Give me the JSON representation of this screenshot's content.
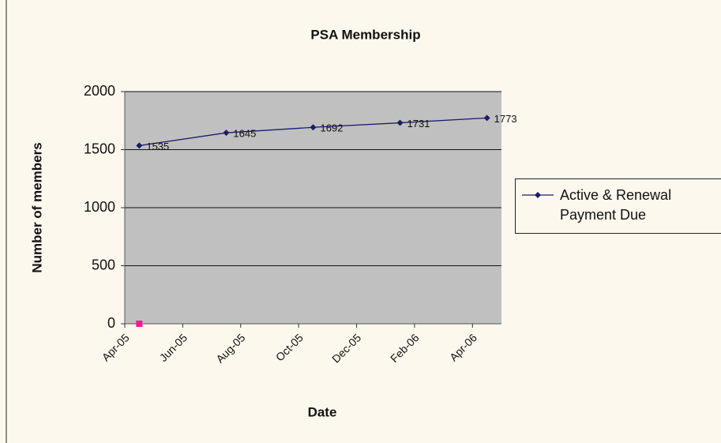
{
  "chart_data": {
    "type": "line",
    "title": "PSA Membership",
    "x_label": "Date",
    "y_label": "Number of members",
    "x": [
      "2005-04",
      "2005-07",
      "2005-10",
      "2006-01",
      "2006-04"
    ],
    "series": [
      {
        "name": "Active & Renewal Payment Due",
        "color": "#1c1c6b",
        "values": [
          1535,
          1645,
          1692,
          1731,
          1773
        ]
      },
      {
        "color": "#ff1493",
        "values": [
          0,
          null,
          null,
          null,
          null
        ]
      }
    ],
    "xlim": [
      "2005-04",
      "2006-05"
    ],
    "xticks": [
      {
        "value": "2005-04",
        "label": "Apr-05"
      },
      {
        "value": "2005-06",
        "label": "Jun-05"
      },
      {
        "value": "2005-08",
        "label": "Aug-05"
      },
      {
        "value": "2005-10",
        "label": "Oct-05"
      },
      {
        "value": "2005-12",
        "label": "Dec-05"
      },
      {
        "value": "2006-02",
        "label": "Feb-06"
      },
      {
        "value": "2006-04",
        "label": "Apr-06"
      }
    ],
    "ylim": [
      0,
      2000
    ],
    "yticks": [
      0,
      500,
      1000,
      1500,
      2000
    ],
    "grid": true,
    "legend": "right"
  }
}
